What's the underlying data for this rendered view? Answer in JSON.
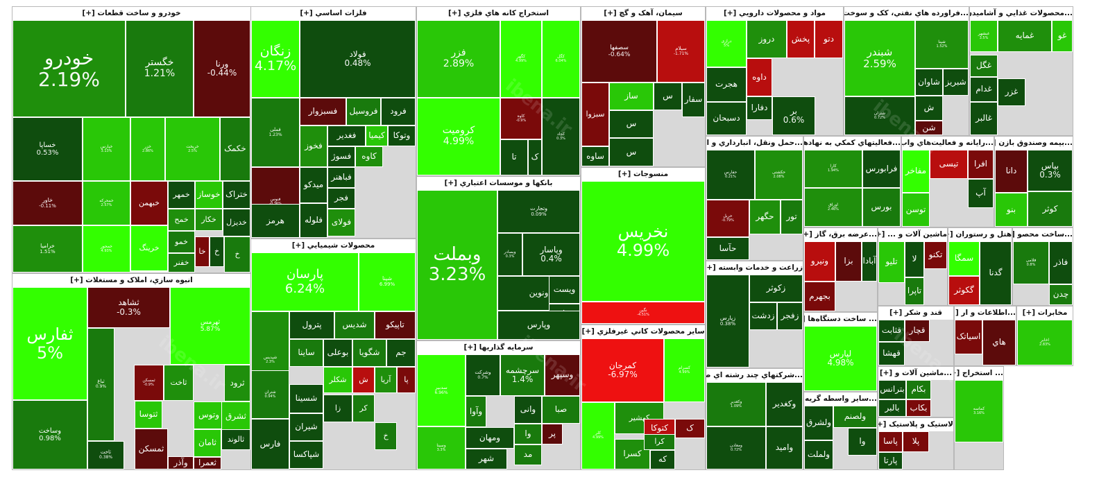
{
  "colors": {
    "up5": "#33ff00",
    "up3": "#29c707",
    "up2": "#1f8f0c",
    "up1": "#197a0d",
    "up0": "#0f4d0e",
    "dn0": "#5c0b0b",
    "dn1": "#7a0a0a",
    "dn2": "#b80e0e",
    "dn3": "#ee1111"
  },
  "watermark": "ibena.ir",
  "chart_data": {
    "type": "treemap",
    "title": "",
    "sectors": [
      {
        "name": "خودرو و ساخت قطعات",
        "label": "خودرو و ساخت قطعات [+]",
        "stocks": [
          {
            "s": "خودرو",
            "v": 2.19
          },
          {
            "s": "خگستر",
            "v": 1.21
          },
          {
            "s": "ورنا",
            "v": -0.44
          },
          {
            "s": "خساپا",
            "v": 0.53
          },
          {
            "s": "خپارس",
            "v": 3.13
          },
          {
            "s": "خزر",
            "v": 2.86
          },
          {
            "s": "خریخت",
            "v": 2.5
          },
          {
            "s": "خکمک",
            "v": 1.2
          },
          {
            "s": "خاور",
            "v": -0.11
          },
          {
            "s": "خمحرکه",
            "v": 2.57
          },
          {
            "s": "خبهمن",
            "v": -0.9
          },
          {
            "s": "خمهر",
            "v": 0.7
          },
          {
            "s": "خوساز",
            "v": 3.9
          },
          {
            "s": "ختراک",
            "v": 0.6
          },
          {
            "s": "خرامیا",
            "v": 1.51
          },
          {
            "s": "خمحور",
            "v": 4.93
          },
          {
            "s": "خرینگ",
            "v": 4.0
          },
          {
            "s": "خمح",
            "v": 1.5
          },
          {
            "s": "خکار",
            "v": 1.8
          },
          {
            "s": "خدیزل",
            "v": 0.4
          },
          {
            "s": "خمو",
            "v": 1.2
          },
          {
            "s": "خا",
            "v": -1.2
          },
          {
            "s": "خ",
            "v": 0.3
          },
          {
            "s": "خلنت",
            "v": 1.6
          },
          {
            "s": "خفنر",
            "v": 0.8
          },
          {
            "s": "خ",
            "v": 1.0
          }
        ]
      },
      {
        "name": "انبوه سازي، املاک و مستغلات",
        "label": "انبوه سازي، املاک و مستغلات [+]",
        "stocks": [
          {
            "s": "ثفارس",
            "v": 5.0
          },
          {
            "s": "ثشاهد",
            "v": -0.3
          },
          {
            "s": "ثهرمس",
            "v": 5.87
          },
          {
            "s": "ثباغ",
            "v": 0.9
          },
          {
            "s": "ثمسکن",
            "v": -0.9
          },
          {
            "s": "ثاخت",
            "v": 1.5
          },
          {
            "s": "ثرود",
            "v": 2.2
          },
          {
            "s": "ثتوسا",
            "v": 3.9
          },
          {
            "s": "وتوس",
            "v": 3.7
          },
          {
            "s": "ثشرق",
            "v": 3.6
          },
          {
            "s": "وساخت",
            "v": 0.98
          },
          {
            "s": "ثامان",
            "v": 3.4
          },
          {
            "s": "ثالوند",
            "v": 0.3
          },
          {
            "s": "ثاخت",
            "v": 0.38
          },
          {
            "s": "ثمسکن",
            "v": -0.4
          },
          {
            "s": "وآذر",
            "v": -0.6
          },
          {
            "s": "ثعمرا",
            "v": -0.6
          }
        ]
      },
      {
        "name": "فلزات اساسي",
        "label": "فلزات اساسي [+]",
        "stocks": [
          {
            "s": "زنگان",
            "v": 4.17
          },
          {
            "s": "فولاد",
            "v": 0.48
          },
          {
            "s": "فملی",
            "v": 1.23
          },
          {
            "s": "فسبزوار",
            "v": -0.6
          },
          {
            "s": "فروسیل",
            "v": 1.4
          },
          {
            "s": "فرود",
            "v": 0.3
          },
          {
            "s": "فخوز",
            "v": 2.2
          },
          {
            "s": "فغدیر",
            "v": 0.7
          },
          {
            "s": "کیمیا",
            "v": 3.8
          },
          {
            "s": "وتوکا",
            "v": 0.5
          },
          {
            "s": "فنوس",
            "v": -0.36
          },
          {
            "s": "میدکو",
            "v": 0.3
          },
          {
            "s": "فسوژ",
            "v": 0.6
          },
          {
            "s": "کاوه",
            "v": 2.1
          },
          {
            "s": "فباهنر",
            "v": 0.6
          },
          {
            "s": "فجر",
            "v": 0.6
          },
          {
            "s": "هرمز",
            "v": 0.4
          },
          {
            "s": "فلوله",
            "v": 0.5
          },
          {
            "s": "فولای",
            "v": 2.1
          }
        ]
      },
      {
        "name": "محصولات شيميايي",
        "label": "محصولات شيميايي [+]",
        "stocks": [
          {
            "s": "پارسان",
            "v": 6.24
          },
          {
            "s": "شپنا",
            "v": 6.99
          },
          {
            "s": "شپدیس",
            "v": 2.3
          },
          {
            "s": "پترول",
            "v": 0.4
          },
          {
            "s": "شدیس",
            "v": 1.4
          },
          {
            "s": "تاپیکو",
            "v": -0.5
          },
          {
            "s": "ساینا",
            "v": 1.2
          },
          {
            "s": "بوعلی",
            "v": 0.4
          },
          {
            "s": "شگویا",
            "v": 1.2
          },
          {
            "s": "جم",
            "v": 0.6
          },
          {
            "s": "شکلر",
            "v": 3.0
          },
          {
            "s": "ش",
            "v": -2.0
          },
          {
            "s": "آریا",
            "v": 1.5
          },
          {
            "s": "پا",
            "v": -1.0
          },
          {
            "s": "شتران",
            "v": 0.94
          },
          {
            "s": "شسینا",
            "v": 0.5
          },
          {
            "s": "شیران",
            "v": 0.5
          },
          {
            "s": "شپاکسا",
            "v": 0.4
          },
          {
            "s": "فارس",
            "v": 0.3
          },
          {
            "s": "کر",
            "v": 1.0
          },
          {
            "s": "زا",
            "v": 0.6
          },
          {
            "s": "خ",
            "v": 0.8
          }
        ]
      },
      {
        "name": "استخراج کانه هاي فلزي",
        "label": "استخراج کانه هاي فلزي [+]",
        "stocks": [
          {
            "s": "فزر",
            "v": 2.89
          },
          {
            "s": "کگهر",
            "v": 4.99
          },
          {
            "s": "کگل",
            "v": 6.04
          },
          {
            "s": "کروميت",
            "v": 4.99
          },
          {
            "s": "کاوه",
            "v": -0.9
          },
          {
            "s": "کچاد",
            "v": 0.3
          },
          {
            "s": "تا",
            "v": 0.3
          },
          {
            "s": "ک",
            "v": 0.5
          }
        ]
      },
      {
        "name": "بانکها و موسسات اعتباري",
        "label": "بانکها و موسسات اعتباري [+]",
        "stocks": [
          {
            "s": "وبملت",
            "v": 3.23
          },
          {
            "s": "وتجارت",
            "v": 0.09
          },
          {
            "s": "وبصادر",
            "v": 0.3
          },
          {
            "s": "وپاسار",
            "v": 0.4
          },
          {
            "s": "ونوین",
            "v": 0.4
          },
          {
            "s": "ویست",
            "v": 0.5
          },
          {
            "s": "وخاور",
            "v": 0.6
          },
          {
            "s": "وپارس",
            "v": 0.3
          }
        ]
      },
      {
        "name": "سرمايه گذاريها",
        "label": "سرمايه گذاريها [+]",
        "stocks": [
          {
            "s": "سدبیر",
            "v": 6.96
          },
          {
            "s": "وشرکت",
            "v": 0.7
          },
          {
            "s": "سرچشمه",
            "v": 1.4
          },
          {
            "s": "وسپهر",
            "v": -0.5
          },
          {
            "s": "وآوا",
            "v": 1.2
          },
          {
            "s": "ومهان",
            "v": 0.4
          },
          {
            "s": "وانی",
            "v": 0.6
          },
          {
            "s": "شهر",
            "v": 0.6
          },
          {
            "s": "صبا",
            "v": 1.3
          },
          {
            "s": "پر",
            "v": -0.6
          },
          {
            "s": "وا",
            "v": 0.8
          },
          {
            "s": "مد",
            "v": 1.0
          },
          {
            "s": "وسینا",
            "v": 3.3
          }
        ]
      },
      {
        "name": "سيمان، آهک و گچ",
        "label": "سيمان، آهک و گچ [+]",
        "stocks": [
          {
            "s": "سصفها",
            "v": -0.64
          },
          {
            "s": "سیلام",
            "v": -1.71
          },
          {
            "s": "سبزوا",
            "v": -0.7
          },
          {
            "s": "ساز",
            "v": 3.6
          },
          {
            "s": "س",
            "v": 0.4
          },
          {
            "s": "سفار",
            "v": 0.5
          },
          {
            "s": "س",
            "v": 0.4
          },
          {
            "s": "ساوه",
            "v": 0.5
          },
          {
            "s": "س",
            "v": 0.4
          }
        ]
      },
      {
        "name": "منسوجات",
        "label": "منسوجات [+]",
        "stocks": [
          {
            "s": "نخريس",
            "v": 4.99
          },
          {
            "s": "نگین",
            "v": -4.51
          }
        ]
      },
      {
        "name": "ساير محصولات کاني غيرفلزي",
        "label": "ساير محصولات کاني غيرفلزي [+]",
        "stocks": [
          {
            "s": "کمرجان",
            "v": -6.97
          },
          {
            "s": "کسرام",
            "v": 4.99
          },
          {
            "s": "کهشیر",
            "v": 1.5
          },
          {
            "s": "کتوکا",
            "v": -2.0
          },
          {
            "s": "ک",
            "v": -1.0
          },
          {
            "s": "کسرا",
            "v": 1.5
          },
          {
            "s": "کرا",
            "v": 0.8
          },
          {
            "s": "که",
            "v": 0.3
          },
          {
            "s": "کلر",
            "v": 4.99
          }
        ]
      },
      {
        "name": "مواد و محصولات دارويي",
        "label": "مواد و محصولات دارويي [+]",
        "stocks": [
          {
            "s": "درازی",
            "v": 5.0
          },
          {
            "s": "دروز",
            "v": 1.7
          },
          {
            "s": "پخش",
            "v": -2.5
          },
          {
            "s": "دتو",
            "v": -2.2
          },
          {
            "s": "هجرت",
            "v": 0.6
          },
          {
            "s": "داوه",
            "v": -1.8
          },
          {
            "s": "دفارا",
            "v": 0.5
          },
          {
            "s": "دسبحان",
            "v": 0.3
          },
          {
            "s": "بر",
            "v": 0.6
          }
        ]
      },
      {
        "name": "فراورده هاي نفتي، کک و سوخت ه",
        "label": "...فراورده هاي نفتي، کک و سوخت ه [+]",
        "stocks": [
          {
            "s": "شبندر",
            "v": 2.59
          },
          {
            "s": "شپنا",
            "v": 1.52
          },
          {
            "s": "شاوان",
            "v": 0.3
          },
          {
            "s": "شبریز",
            "v": 0.6
          },
          {
            "s": "شتران",
            "v": 0.72
          },
          {
            "s": "ش",
            "v": 0.6
          },
          {
            "s": "شن",
            "v": -0.5
          }
        ]
      },
      {
        "name": "محصولات غذايي و آشاميدن",
        "label": "...محصولات غذايي و آشاميدن [+]",
        "stocks": [
          {
            "s": "غبشهر",
            "v": 3.5
          },
          {
            "s": "غمایه",
            "v": 2.0
          },
          {
            "s": "غو",
            "v": 3.0
          },
          {
            "s": "غگل",
            "v": 1.0
          },
          {
            "s": "غزر",
            "v": 0.6
          },
          {
            "s": "غدام",
            "v": 0.5
          },
          {
            "s": "غالبر",
            "v": 0.4
          }
        ]
      },
      {
        "name": "حمل ونقل، انبارداري و ار",
        "label": "...حمل ونقل، انبارداري و ار [+]",
        "stocks": [
          {
            "s": "حفارس",
            "v": 0.21
          },
          {
            "s": "حکشتی",
            "v": 2.08
          },
          {
            "s": "حریل",
            "v": -0.79
          },
          {
            "s": "حگهر",
            "v": 2.3
          },
          {
            "s": "حآسا",
            "v": 0.5
          },
          {
            "s": "تور",
            "v": 1.0
          }
        ]
      },
      {
        "name": "زراعت و خدمات وابسته",
        "label": "زراعت و خدمات وابسته [+]",
        "stocks": [
          {
            "s": "زپارس",
            "v": 0.38
          },
          {
            "s": "زکوثر",
            "v": 0.7
          },
          {
            "s": "زدشت",
            "v": 0.5
          },
          {
            "s": "زفجر",
            "v": 0.5
          }
        ]
      },
      {
        "name": "شرکتهاي چند رشته اي ص",
        "label": "...شرکتهاي چند رشته اي ص [+]",
        "stocks": [
          {
            "s": "وکغدیر",
            "v": 1.09
          },
          {
            "s": "وکغدير",
            "v": 0.6
          },
          {
            "s": "ومعادن",
            "v": 0.72
          },
          {
            "s": "وامید",
            "v": 0.5
          }
        ]
      },
      {
        "name": "فعاليتهاي کمکي به نهادها",
        "label": "...فعاليتهاي کمکي به نهادها [+]",
        "stocks": [
          {
            "s": "کارا",
            "v": 1.94
          },
          {
            "s": "فرابورس",
            "v": 0.6
          },
          {
            "s": "اوراق",
            "v": 2.46
          },
          {
            "s": "بورس",
            "v": 1.0
          }
        ]
      },
      {
        "name": "رايانه و فعاليت‌هاي وابسته",
        "label": "...رايانه و فعاليت‌هاي واب [+]",
        "stocks": [
          {
            "s": "مفاخر",
            "v": 4.0
          },
          {
            "s": "تیسی",
            "v": -1.5
          },
          {
            "s": "افرا",
            "v": -0.8
          },
          {
            "s": "توسن",
            "v": 3.9
          },
          {
            "s": "آپ",
            "v": 0.6
          }
        ]
      },
      {
        "name": "بيمه وصندوق بازنشستگي",
        "label": "...بيمه وصندوق بازن [+]",
        "stocks": [
          {
            "s": "دانا",
            "v": -0.5
          },
          {
            "s": "بپاس",
            "v": 0.3
          },
          {
            "s": "بنو",
            "v": 3.9
          },
          {
            "s": "کوثر",
            "v": 1.2
          }
        ]
      },
      {
        "name": "عرضه برق، گاز",
        "label": "...عرضه برق، گاز [+]",
        "stocks": [
          {
            "s": "ونیرو",
            "v": -2.0
          },
          {
            "s": "بزا",
            "v": -0.5
          },
          {
            "s": "آبادا",
            "v": 0.5
          },
          {
            "s": "بجهرم",
            "v": -0.8
          }
        ]
      },
      {
        "name": "ساخت دستگاه‌ها",
        "label": "... ساخت دستگاه‌ها [+]",
        "stocks": [
          {
            "s": "لپارس",
            "v": 4.98
          }
        ]
      },
      {
        "name": "ساير واسطه گريه",
        "label": "...ساير واسطه گريه [+]",
        "stocks": [
          {
            "s": "ولشرق",
            "v": 0.5
          },
          {
            "s": "ولصنم",
            "v": 1.3
          },
          {
            "s": "ولملت",
            "v": 0.5
          },
          {
            "s": "وا",
            "v": 0.3
          }
        ]
      },
      {
        "name": "ماشين آلات و",
        "label": "ماشين آلات و ... [+]",
        "stocks": [
          {
            "s": "تلیو",
            "v": 2.5
          },
          {
            "s": "لا",
            "v": 0.5
          },
          {
            "s": "تکنو",
            "v": -0.8
          },
          {
            "s": "تاپرا",
            "v": 1.2
          }
        ]
      },
      {
        "name": "هتل و رستوران",
        "label": "هتل و رستوران [+]",
        "stocks": [
          {
            "s": "سمگا",
            "v": 4.0
          },
          {
            "s": "گدنا",
            "v": 0.5
          },
          {
            "s": "گکوثر",
            "v": -2.0
          }
        ]
      },
      {
        "name": "ساخت محصو",
        "label": "...ساخت محصو [+]",
        "stocks": [
          {
            "s": "فلامی",
            "v": 0.8
          },
          {
            "s": "فاذر",
            "v": 0.5
          },
          {
            "s": "چدن",
            "v": 1.4
          }
        ]
      },
      {
        "name": "قند و شکر",
        "label": "قند و شکر [+]",
        "stocks": [
          {
            "s": "قثابت",
            "v": 0.6
          },
          {
            "s": "قچار",
            "v": -0.5
          },
          {
            "s": "قهشا",
            "v": 0.3
          }
        ]
      },
      {
        "name": "اطلاعات و ار",
        "label": "...اطلاعات و ار [+]",
        "stocks": [
          {
            "s": "اسیاتک",
            "v": -0.7
          },
          {
            "s": "هاي",
            "v": -0.5
          }
        ]
      },
      {
        "name": "مخابرات",
        "label": "مخابرات [+]",
        "stocks": [
          {
            "s": "اخابر",
            "v": 2.83
          }
        ]
      },
      {
        "name": "ماشين آلات",
        "label": "...ماشين آلات و [+]",
        "stocks": [
          {
            "s": "بترانس",
            "v": 0.5
          },
          {
            "s": "بکام",
            "v": 1.3
          },
          {
            "s": "بالبر",
            "v": 0.6
          },
          {
            "s": "بکاب",
            "v": -1.0
          }
        ]
      },
      {
        "name": "لاستیک و پلاستیک",
        "label": "لاستیک و پلاستیک [+]",
        "stocks": [
          {
            "s": "پاسا",
            "v": -1.0
          },
          {
            "s": "پارتا",
            "v": 0.5
          },
          {
            "s": "پلا",
            "v": -0.8
          }
        ]
      },
      {
        "name": "استخراج",
        "label": "... استخراج [+]",
        "stocks": [
          {
            "s": "کماسه",
            "v": 3.16
          }
        ]
      }
    ]
  }
}
